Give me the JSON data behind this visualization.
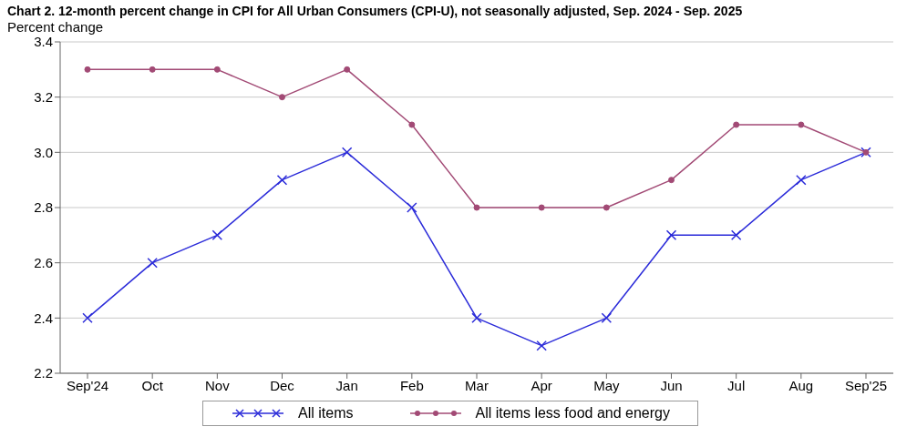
{
  "chart_data": {
    "type": "line",
    "title": "Chart 2. 12-month percent change in CPI for All Urban Consumers (CPI-U), not seasonally adjusted, Sep. 2024 - Sep. 2025",
    "ylabel": "Percent change",
    "categories": [
      "Sep'24",
      "Oct",
      "Nov",
      "Dec",
      "Jan",
      "Feb",
      "Mar",
      "Apr",
      "May",
      "Jun",
      "Jul",
      "Aug",
      "Sep'25"
    ],
    "series": [
      {
        "name": "All items",
        "color": "#2b2bd9",
        "marker": "cross",
        "values": [
          2.4,
          2.6,
          2.7,
          2.9,
          3.0,
          2.8,
          2.4,
          2.3,
          2.4,
          2.7,
          2.7,
          2.9,
          3.0
        ]
      },
      {
        "name": "All items less food and energy",
        "color": "#a24a75",
        "marker": "circle",
        "values": [
          3.3,
          3.3,
          3.3,
          3.2,
          3.3,
          3.1,
          2.8,
          2.8,
          2.8,
          2.9,
          3.1,
          3.1,
          3.0
        ]
      }
    ],
    "ylim": [
      2.2,
      3.4
    ],
    "yticks": [
      {
        "value": 2.2,
        "label": "2.2"
      },
      {
        "value": 2.4,
        "label": "2.4"
      },
      {
        "value": 2.6,
        "label": "2.6"
      },
      {
        "value": 2.8,
        "label": "2.8"
      },
      {
        "value": 3.0,
        "label": "3.0"
      },
      {
        "value": 3.2,
        "label": "3.2"
      },
      {
        "value": 3.4,
        "label": "3.4"
      }
    ],
    "grid": "y",
    "legend": "bottom",
    "line_style": "solid"
  }
}
